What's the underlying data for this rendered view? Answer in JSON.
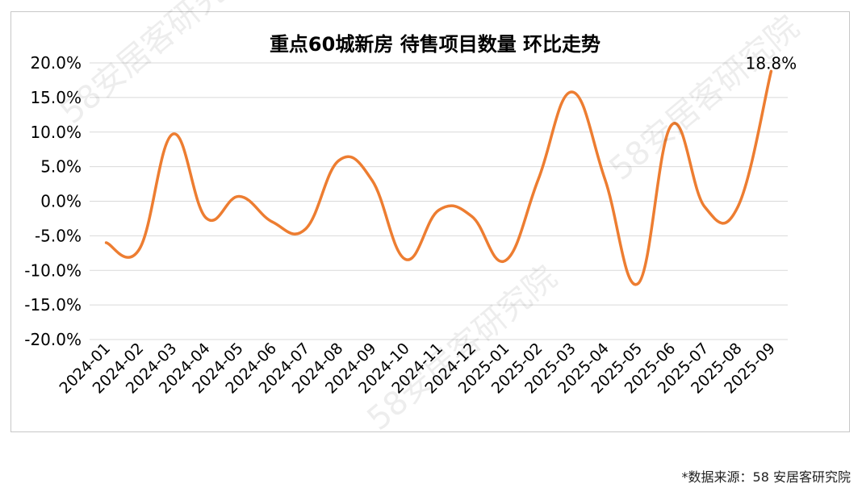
{
  "source_note": "*数据来源：58 安居客研究院",
  "watermark_text": "58安居客研究院",
  "colors": {
    "line": "#ED7D31",
    "grid": "#d9d9d9",
    "text": "#000000"
  },
  "chart_data": {
    "type": "line",
    "title": "重点60城新房 待售项目数量 环比走势",
    "xlabel": "",
    "ylabel": "",
    "categories": [
      "2024-01",
      "2024-02",
      "2024-03",
      "2024-04",
      "2024-05",
      "2024-06",
      "2024-07",
      "2024-08",
      "2024-09",
      "2024-10",
      "2024-11",
      "2024-12",
      "2025-01",
      "2025-02",
      "2025-03",
      "2025-04",
      "2025-05",
      "2025-06",
      "2025-07",
      "2025-08",
      "2025-09"
    ],
    "values": [
      -6.0,
      -6.9,
      9.7,
      -2.4,
      0.7,
      -3.0,
      -4.0,
      5.9,
      3.0,
      -8.4,
      -1.3,
      -2.2,
      -8.6,
      3.2,
      15.8,
      3.2,
      -11.9,
      11.0,
      -0.8,
      -0.8,
      18.8
    ],
    "ylim": [
      -20,
      20
    ],
    "yticks": [
      20,
      15,
      10,
      5,
      0,
      -5,
      -10,
      -15,
      -20
    ],
    "ytick_labels": [
      "20.0%",
      "15.0%",
      "10.0%",
      "5.0%",
      "0.0%",
      "-5.0%",
      "-10.0%",
      "-15.0%",
      "-20.0%"
    ],
    "annotations": [
      {
        "category": "2025-09",
        "text": "18.8%"
      }
    ],
    "grid": true,
    "legend": "none"
  }
}
